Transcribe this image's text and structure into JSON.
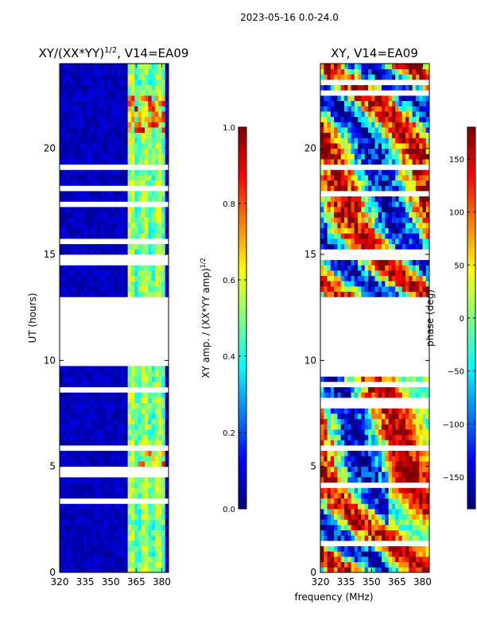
{
  "suptitle": "2023-05-16 0.0-24.0",
  "shared_xlabel": "frequency (MHz)",
  "colors": {
    "jet": [
      "#00007f",
      "#0000ff",
      "#007fff",
      "#00ffff",
      "#7fff7f",
      "#ffff00",
      "#ff7f00",
      "#ff0000",
      "#7f0000"
    ],
    "gap": "#ffffff",
    "axis": "#000000"
  },
  "chart_data": [
    {
      "type": "heatmap",
      "title_main": "XY/(XX*YY)",
      "title_exp": "1/2",
      "title_suffix": ", V14=EA09",
      "xlabel": "",
      "ylabel": "UT (hours)",
      "xlim": [
        320,
        384
      ],
      "ylim": [
        0,
        24
      ],
      "xticks": [
        "320",
        "335",
        "350",
        "365",
        "380"
      ],
      "xtick_values": [
        320,
        335,
        350,
        365,
        380
      ],
      "yticks": [
        "0",
        "5",
        "10",
        "15",
        "20"
      ],
      "ytick_values": [
        0,
        5,
        10,
        15,
        20
      ],
      "data_gap_hours": [
        9.85,
        12.8
      ],
      "colorbar": {
        "label_main": "XY amp. / (XX*YY amp)",
        "label_exp": "1/2",
        "range": [
          0.0,
          1.0
        ],
        "ticks": [
          "0.0",
          "0.2",
          "0.4",
          "0.6",
          "0.8",
          "1.0"
        ],
        "tick_values": [
          0.0,
          0.2,
          0.4,
          0.6,
          0.8,
          1.0
        ]
      }
    },
    {
      "type": "heatmap",
      "title_main": "XY, V14=EA09",
      "xlabel": "frequency (MHz)",
      "ylabel": "",
      "xlim": [
        320,
        384
      ],
      "ylim": [
        0,
        24
      ],
      "xticks": [
        "320",
        "335",
        "350",
        "365",
        "380"
      ],
      "xtick_values": [
        320,
        335,
        350,
        365,
        380
      ],
      "yticks": [
        "0",
        "5",
        "10",
        "15",
        "20"
      ],
      "ytick_values": [
        0,
        5,
        10,
        15,
        20
      ],
      "data_gap_hours": [
        9.85,
        12.8
      ],
      "colorbar": {
        "label_main": "phase (deg)",
        "range": [
          -180,
          180
        ],
        "ticks": [
          "−150",
          "−100",
          "−50",
          "0",
          "50",
          "100",
          "150"
        ],
        "tick_values": [
          -150,
          -100,
          -50,
          0,
          50,
          100,
          150
        ]
      }
    }
  ]
}
